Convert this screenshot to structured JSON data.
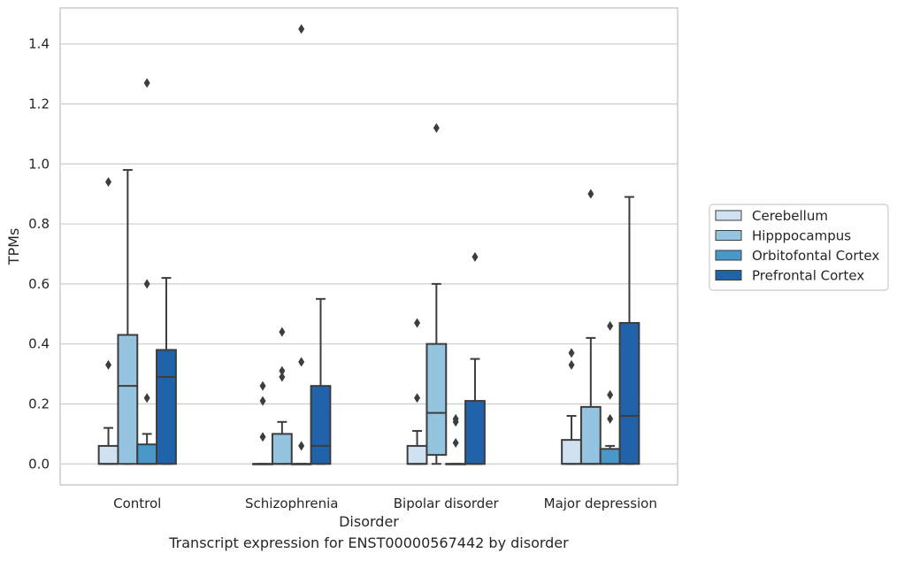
{
  "chart_data": {
    "type": "box",
    "xlabel": "Disorder",
    "ylabel": "TPMs",
    "caption": "Transcript expression for ENST00000567442 by disorder",
    "categories": [
      "Control",
      "Schizophrenia",
      "Bipolar disorder",
      "Major depression"
    ],
    "ylim": [
      -0.07,
      1.52
    ],
    "yticks": [
      0.0,
      0.2,
      0.4,
      0.6,
      0.8,
      1.0,
      1.2,
      1.4
    ],
    "ytick_labels": [
      "0.0",
      "0.2",
      "0.4",
      "0.6",
      "0.8",
      "1.0",
      "1.2",
      "1.4"
    ],
    "grid": "horizontal",
    "legend_position": "right",
    "series": [
      {
        "name": "Cerebellum",
        "color": "#d0e1f2",
        "boxes": [
          {
            "q1": 0.0,
            "median": 0.0,
            "q3": 0.06,
            "whisker_low": 0.0,
            "whisker_high": 0.12,
            "outliers": [
              0.33,
              0.94
            ]
          },
          {
            "q1": 0.0,
            "median": 0.0,
            "q3": 0.0,
            "whisker_low": 0.0,
            "whisker_high": 0.0,
            "outliers": [
              0.09,
              0.21,
              0.26
            ]
          },
          {
            "q1": 0.0,
            "median": 0.0,
            "q3": 0.06,
            "whisker_low": 0.0,
            "whisker_high": 0.11,
            "outliers": [
              0.22,
              0.47
            ]
          },
          {
            "q1": 0.0,
            "median": 0.0,
            "q3": 0.08,
            "whisker_low": 0.0,
            "whisker_high": 0.16,
            "outliers": [
              0.33,
              0.37
            ]
          }
        ]
      },
      {
        "name": "Hipppocampus",
        "color": "#94c4df",
        "boxes": [
          {
            "q1": 0.0,
            "median": 0.26,
            "q3": 0.43,
            "whisker_low": 0.0,
            "whisker_high": 0.98,
            "outliers": []
          },
          {
            "q1": 0.0,
            "median": 0.0,
            "q3": 0.1,
            "whisker_low": 0.0,
            "whisker_high": 0.14,
            "outliers": [
              0.29,
              0.31,
              0.44
            ]
          },
          {
            "q1": 0.03,
            "median": 0.17,
            "q3": 0.4,
            "whisker_low": 0.0,
            "whisker_high": 0.6,
            "outliers": [
              1.12
            ]
          },
          {
            "q1": 0.0,
            "median": 0.0,
            "q3": 0.19,
            "whisker_low": 0.0,
            "whisker_high": 0.42,
            "outliers": [
              0.9
            ]
          }
        ]
      },
      {
        "name": "Orbitofontal Cortex",
        "color": "#4a98c9",
        "boxes": [
          {
            "q1": 0.0,
            "median": 0.0,
            "q3": 0.065,
            "whisker_low": 0.0,
            "whisker_high": 0.1,
            "outliers": [
              0.22,
              0.6,
              1.27
            ]
          },
          {
            "q1": 0.0,
            "median": 0.0,
            "q3": 0.0,
            "whisker_low": 0.0,
            "whisker_high": 0.0,
            "outliers": [
              0.06,
              0.34,
              1.45
            ]
          },
          {
            "q1": 0.0,
            "median": 0.0,
            "q3": 0.0,
            "whisker_low": 0.0,
            "whisker_high": 0.0,
            "outliers": [
              0.07,
              0.14,
              0.15
            ]
          },
          {
            "q1": 0.0,
            "median": 0.0,
            "q3": 0.05,
            "whisker_low": 0.0,
            "whisker_high": 0.06,
            "outliers": [
              0.15,
              0.23,
              0.46
            ]
          }
        ]
      },
      {
        "name": "Prefrontal Cortex",
        "color": "#2163aa",
        "boxes": [
          {
            "q1": 0.0,
            "median": 0.29,
            "q3": 0.38,
            "whisker_low": 0.0,
            "whisker_high": 0.62,
            "outliers": []
          },
          {
            "q1": 0.0,
            "median": 0.06,
            "q3": 0.26,
            "whisker_low": 0.0,
            "whisker_high": 0.55,
            "outliers": []
          },
          {
            "q1": 0.0,
            "median": 0.0,
            "q3": 0.21,
            "whisker_low": 0.0,
            "whisker_high": 0.35,
            "outliers": [
              0.69
            ]
          },
          {
            "q1": 0.0,
            "median": 0.16,
            "q3": 0.47,
            "whisker_low": 0.0,
            "whisker_high": 0.89,
            "outliers": []
          }
        ]
      }
    ]
  }
}
